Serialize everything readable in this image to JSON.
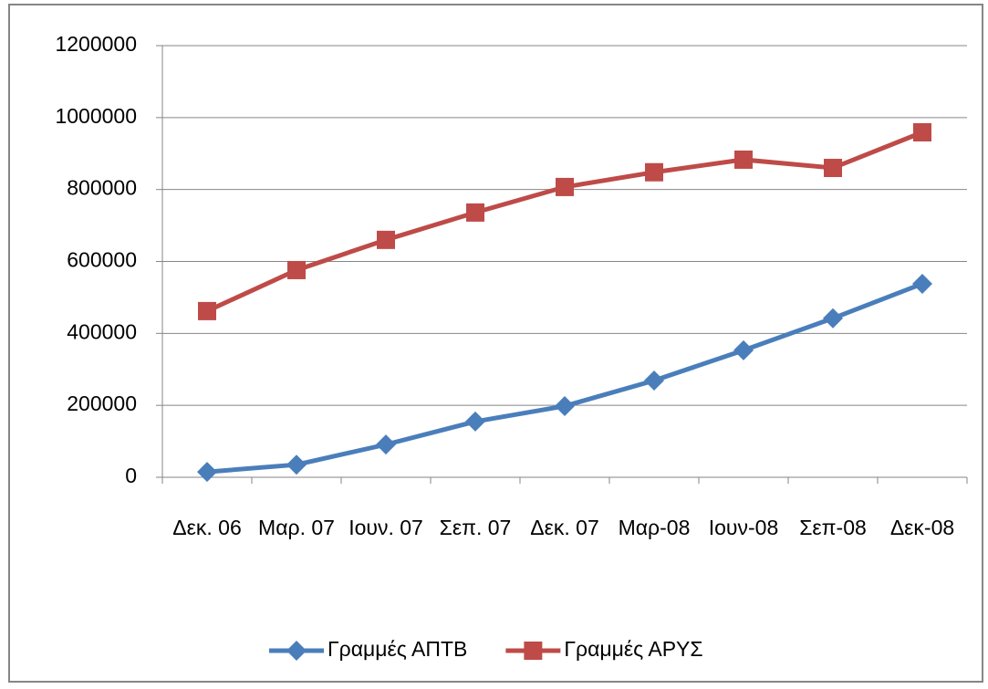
{
  "chart_data": {
    "type": "line",
    "categories": [
      "Δεκ. 06",
      "Μαρ. 07",
      "Ιουν. 07",
      "Σεπ. 07",
      "Δεκ. 07",
      "Μαρ-08",
      "Ιουν-08",
      "Σεπ-08",
      "Δεκ-08"
    ],
    "series": [
      {
        "name": "Γραμμές ΑΠΤΒ",
        "color": "#4a7ebb",
        "marker": "diamond",
        "values": [
          15000,
          35000,
          91000,
          155000,
          198000,
          269000,
          353000,
          442000,
          538000
        ]
      },
      {
        "name": "Γραμμές ΑΡΥΣ",
        "color": "#be4b48",
        "marker": "square",
        "values": [
          462000,
          576000,
          660000,
          736000,
          807000,
          848000,
          883000,
          860000,
          959000
        ]
      }
    ],
    "ylim": [
      0,
      1200000
    ],
    "yticks": [
      0,
      200000,
      400000,
      600000,
      800000,
      1000000,
      1200000
    ],
    "grid": true,
    "legend": "bottom"
  }
}
